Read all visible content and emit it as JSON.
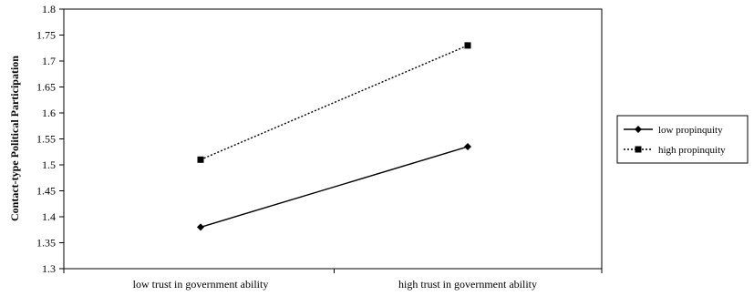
{
  "chart_data": {
    "type": "line",
    "title": "",
    "xlabel": "",
    "ylabel": "Contact-type Political Participation",
    "categories": [
      "low trust in government ability",
      "high trust in government ability"
    ],
    "series": [
      {
        "name": "low propinquity",
        "values": [
          1.38,
          1.535
        ],
        "marker": "diamond",
        "line_style": "solid",
        "color": "#000000"
      },
      {
        "name": "high propinquity",
        "values": [
          1.51,
          1.73
        ],
        "marker": "square",
        "line_style": "dotted",
        "color": "#000000"
      }
    ],
    "ylim": [
      1.3,
      1.8
    ],
    "yticks": [
      "1.3",
      "1.35",
      "1.4",
      "1.45",
      "1.5",
      "1.55",
      "1.6",
      "1.65",
      "1.7",
      "1.75",
      "1.8"
    ],
    "grid": false,
    "legend_position": "right"
  }
}
